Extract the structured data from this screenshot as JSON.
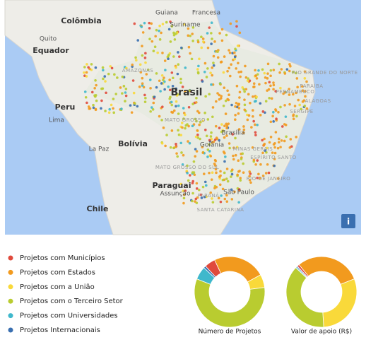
{
  "map": {
    "labels": [
      {
        "text": "Guiana",
        "kind": "city"
      },
      {
        "text": "Francesa",
        "kind": "city"
      },
      {
        "text": "Colômbia",
        "kind": "country"
      },
      {
        "text": "Suriname",
        "kind": "city"
      },
      {
        "text": "Quito",
        "kind": "city"
      },
      {
        "text": "Equador",
        "kind": "country"
      },
      {
        "text": "Brasil",
        "kind": "big"
      },
      {
        "text": "Peru",
        "kind": "country"
      },
      {
        "text": "Lima",
        "kind": "city"
      },
      {
        "text": "Bolívia",
        "kind": "country"
      },
      {
        "text": "La Paz",
        "kind": "city"
      },
      {
        "text": "Brasília",
        "kind": "city"
      },
      {
        "text": "Goiânia",
        "kind": "city"
      },
      {
        "text": "Paraguai",
        "kind": "country"
      },
      {
        "text": "Assunção",
        "kind": "city"
      },
      {
        "text": "São Paulo",
        "kind": "city"
      },
      {
        "text": "Chile",
        "kind": "country"
      },
      {
        "text": "RIO GRANDE DO NORTE",
        "kind": "state"
      },
      {
        "text": "PARAÍBA",
        "kind": "state"
      },
      {
        "text": "PERNAMBUCO",
        "kind": "state"
      },
      {
        "text": "ALAGOAS",
        "kind": "state"
      },
      {
        "text": "SERGIPE",
        "kind": "state"
      },
      {
        "text": "MINAS GERAIS",
        "kind": "state"
      },
      {
        "text": "ESPÍRITO SANTO",
        "kind": "state"
      },
      {
        "text": "RIO DE JANEIRO",
        "kind": "state"
      },
      {
        "text": "MATO GROSSO DO SUL",
        "kind": "state"
      },
      {
        "text": "PARANÁ",
        "kind": "state"
      },
      {
        "text": "SANTA CATARINA",
        "kind": "state"
      },
      {
        "text": "AMAZONAS",
        "kind": "state"
      },
      {
        "text": "MATO GROSSO",
        "kind": "state"
      }
    ],
    "info_button": "i"
  },
  "chart_data": [
    {
      "type": "donut",
      "title": "Número de Projetos",
      "categories": [
        "Projetos com Municípios",
        "Projetos com Estados",
        "Projetos com a União",
        "Projetos com o Terceiro Setor",
        "Projetos com Universidades",
        "Projetos Internacionais"
      ],
      "colors": [
        "#e04a3c",
        "#f29a1e",
        "#f9d93a",
        "#b9cc30",
        "#3fb8cc",
        "#3a6fb0"
      ],
      "values": [
        5,
        24,
        6,
        58,
        6,
        1
      ]
    },
    {
      "type": "donut",
      "title": "Valor de apoio (R$)",
      "values": [
        1,
        30,
        30,
        38,
        0.5,
        0.5
      ]
    }
  ]
}
